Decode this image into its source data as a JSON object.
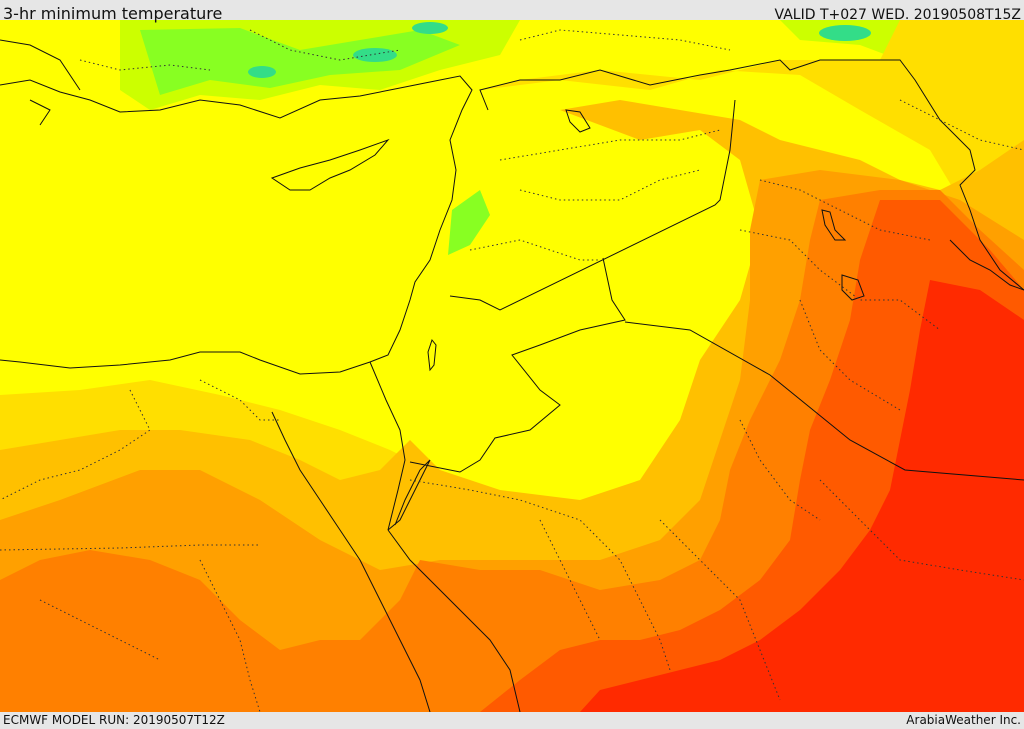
{
  "header": {
    "title": "3-hr minimum temperature",
    "valid": "VALID T+027 WED. 20190508T15Z"
  },
  "footer": {
    "model_run": "ECMWF MODEL RUN: 20190507T12Z",
    "credit": "ArabiaWeather Inc."
  },
  "palette": {
    "yellow": "#ffff00",
    "yellow_amber": "#ffdf00",
    "amber": "#ffc000",
    "orange_light": "#ffa000",
    "orange": "#ff8000",
    "orange_red": "#ff5a00",
    "red": "#ff2a00",
    "green_yellow": "#ccff00",
    "green": "#66ff33",
    "cyan_green": "#33dd88"
  }
}
